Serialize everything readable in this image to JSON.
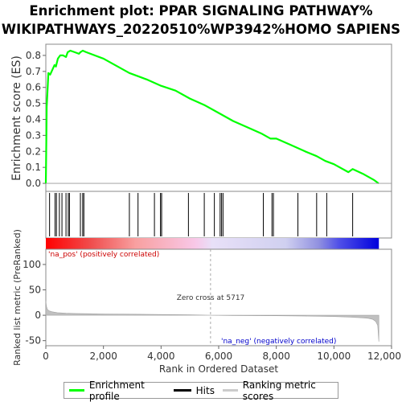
{
  "chart_data": {
    "type": "line",
    "title": "Enrichment plot: PPAR SIGNALING PATHWAY%\nWIKIPATHWAYS_20220510%WP3942%HOMO SAPIENS",
    "title_lines": [
      "Enrichment plot: PPAR SIGNALING PATHWAY%",
      "WIKIPATHWAYS_20220510%WP3942%HOMO SAPIENS"
    ],
    "ylabel": "Enrichment score (ES)",
    "ylabel_bottom": "Ranked list metric (PreRanked)",
    "xlabel": "Rank in Ordered Dataset",
    "xlim": [
      0,
      12000
    ],
    "ylim": [
      -0.05,
      0.87
    ],
    "ylim_bottom": [
      -60,
      130
    ],
    "yticks": [
      "0.0",
      "0.1",
      "0.2",
      "0.3",
      "0.4",
      "0.5",
      "0.6",
      "0.7",
      "0.8"
    ],
    "yticks_bottom": [
      "-50",
      "0",
      "50",
      "100"
    ],
    "xticks": [
      "0",
      "2,000",
      "4,000",
      "6,000",
      "8,000",
      "10,000",
      "12,000"
    ],
    "grid": false,
    "legend_placement": "bottom",
    "series": [
      {
        "name": "Enrichment profile",
        "color": "#00ff00",
        "x": [
          0,
          30,
          90,
          150,
          300,
          350,
          420,
          500,
          600,
          700,
          760,
          850,
          1000,
          1150,
          1200,
          1280,
          1400,
          2000,
          2900,
          3200,
          3500,
          4000,
          4500,
          5000,
          5500,
          6000,
          6100,
          6500,
          7000,
          7500,
          7800,
          8000,
          8500,
          9000,
          9400,
          9700,
          10000,
          10500,
          10650,
          11000,
          11400,
          11550
        ],
        "y": [
          0.0,
          0.48,
          0.69,
          0.68,
          0.74,
          0.73,
          0.78,
          0.8,
          0.8,
          0.79,
          0.82,
          0.83,
          0.82,
          0.81,
          0.82,
          0.83,
          0.82,
          0.78,
          0.69,
          0.67,
          0.65,
          0.61,
          0.58,
          0.53,
          0.49,
          0.44,
          0.43,
          0.39,
          0.35,
          0.31,
          0.28,
          0.28,
          0.24,
          0.2,
          0.17,
          0.14,
          0.12,
          0.07,
          0.09,
          0.06,
          0.02,
          0.0
        ]
      }
    ],
    "hits": [
      130,
      320,
      370,
      470,
      560,
      700,
      780,
      820,
      1200,
      1280,
      1320,
      2900,
      3200,
      3770,
      3980,
      4020,
      4950,
      5500,
      5850,
      6050,
      6100,
      6150,
      7550,
      7850,
      7900,
      8750,
      9400,
      9750,
      10650
    ],
    "ranked_metric": {
      "x": [
        0,
        20,
        50,
        100,
        200,
        400,
        700,
        1000,
        1500,
        2000,
        3000,
        4000,
        5000,
        5717,
        6500,
        8000,
        9000,
        10000,
        10500,
        11000,
        11200,
        11350,
        11450,
        11520,
        11560
      ],
      "y": [
        28,
        18,
        12,
        9,
        7,
        5,
        4,
        3.5,
        3,
        2.6,
        2,
        1.5,
        0.8,
        0,
        -0.5,
        -1,
        -1.5,
        -2.5,
        -3.5,
        -5,
        -6,
        -8,
        -12,
        -20,
        -52
      ]
    },
    "zero_cross": 5717,
    "annotations": {
      "zero_cross": "Zero cross at 5717",
      "na_pos": "'na_pos' (positively correlated)",
      "na_neg": "'na_neg' (negatively correlated)"
    },
    "legend": [
      {
        "label": "Enrichment profile",
        "color": "#00ff00"
      },
      {
        "label": "Hits",
        "color": "#000000"
      },
      {
        "label": "Ranking metric scores",
        "color": "#cccccc"
      }
    ],
    "colors": {
      "profile": "#00ff00",
      "pos_annot": "#cc0000",
      "neg_annot": "#0000cc",
      "metric_fill": "#c0c0c0"
    }
  }
}
